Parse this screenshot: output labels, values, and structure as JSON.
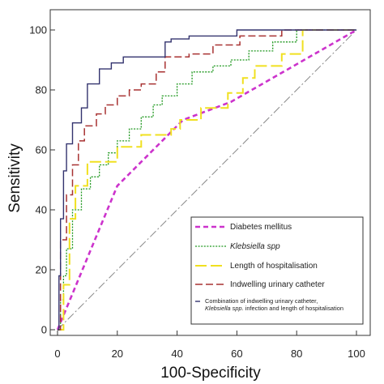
{
  "chart_data": {
    "type": "line",
    "xlabel": "100-Specificity",
    "ylabel": "Sensitivity",
    "xlim": [
      0,
      100
    ],
    "ylim": [
      0,
      100
    ],
    "xticks": [
      0,
      20,
      40,
      60,
      80,
      100
    ],
    "yticks": [
      0,
      20,
      40,
      60,
      80,
      100
    ],
    "grid": false,
    "legend_position": "bottom-right",
    "reference_line": {
      "x": [
        0,
        100
      ],
      "y": [
        0,
        100
      ],
      "color": "#888888"
    },
    "series": [
      {
        "name": "Diabetes mellitus",
        "legend_label": "Diabetes mellitus",
        "italic": false,
        "color": "#cc33cc",
        "style": "dashed-bold",
        "x": [
          0,
          20,
          42,
          58,
          100
        ],
        "y": [
          0,
          48,
          70,
          76,
          100
        ]
      },
      {
        "name": "Klebsiella spp",
        "legend_label": "Klebsiella spp",
        "italic": true,
        "color": "#229922",
        "style": "dotted",
        "x": [
          0,
          1,
          1,
          2,
          2,
          3,
          3,
          5,
          5,
          8,
          8,
          11,
          11,
          14,
          14,
          17,
          17,
          20,
          20,
          24,
          24,
          28,
          28,
          32,
          32,
          35,
          35,
          40,
          40,
          45,
          45,
          52,
          52,
          58,
          58,
          64,
          64,
          72,
          72,
          80,
          80,
          100
        ],
        "y": [
          0,
          0,
          10,
          10,
          18,
          18,
          27,
          27,
          40,
          40,
          47,
          47,
          51,
          51,
          55,
          55,
          59,
          59,
          63,
          63,
          67,
          67,
          71,
          71,
          75,
          75,
          78,
          78,
          82,
          82,
          86,
          86,
          88,
          88,
          90,
          90,
          93,
          93,
          96,
          96,
          100,
          100
        ]
      },
      {
        "name": "Length of hospitalisation",
        "legend_label": "Length of hospitalisation",
        "italic": false,
        "color": "#f0e020",
        "style": "long-dash",
        "x": [
          0,
          2,
          2,
          4,
          4,
          6,
          6,
          10,
          10,
          20,
          20,
          28,
          28,
          38,
          38,
          41,
          41,
          48,
          48,
          57,
          57,
          62,
          62,
          66,
          66,
          75,
          75,
          82,
          82,
          100
        ],
        "y": [
          0,
          0,
          15,
          15,
          37,
          37,
          48,
          48,
          56,
          56,
          61,
          61,
          65,
          65,
          67,
          67,
          70,
          70,
          74,
          74,
          79,
          79,
          84,
          84,
          88,
          88,
          92,
          92,
          100,
          100
        ]
      },
      {
        "name": "Indwelling urinary catheter",
        "legend_label": "Indwelling urinary catheter",
        "italic": false,
        "color": "#a83232",
        "style": "dash",
        "x": [
          0,
          1,
          1,
          3,
          3,
          5,
          5,
          7,
          7,
          9,
          9,
          13,
          13,
          16,
          16,
          20,
          20,
          24,
          24,
          28,
          28,
          33,
          33,
          36,
          36,
          44,
          44,
          52,
          52,
          61,
          61,
          75,
          75,
          100
        ],
        "y": [
          0,
          0,
          30,
          30,
          45,
          45,
          55,
          55,
          63,
          63,
          68,
          68,
          72,
          72,
          75,
          75,
          78,
          78,
          80,
          80,
          82,
          82,
          86,
          86,
          91,
          91,
          92,
          92,
          95,
          95,
          98,
          98,
          100,
          100
        ]
      },
      {
        "name": "Combination of indwelling urinary catheter, Klebsiella spp. infection and length of hospitalisation",
        "legend_label": "Combination of indwelling urinary catheter,",
        "legend_label_line2_italic": "Klebsiella spp.",
        "legend_label_line2_rest": " infection and length of hospitalisation",
        "italic": false,
        "color": "#33336e",
        "style": "solid",
        "x": [
          0,
          0.5,
          0.5,
          1,
          1,
          2,
          2,
          3,
          3,
          5,
          5,
          8,
          8,
          10,
          10,
          14,
          14,
          18,
          18,
          22,
          22,
          36,
          36,
          38,
          38,
          44,
          44,
          60,
          60,
          100
        ],
        "y": [
          0,
          0,
          18,
          18,
          37,
          37,
          53,
          53,
          62,
          62,
          69,
          69,
          74,
          74,
          82,
          82,
          87,
          87,
          89,
          89,
          91,
          91,
          96,
          96,
          97,
          97,
          98,
          98,
          100,
          100
        ]
      }
    ]
  }
}
